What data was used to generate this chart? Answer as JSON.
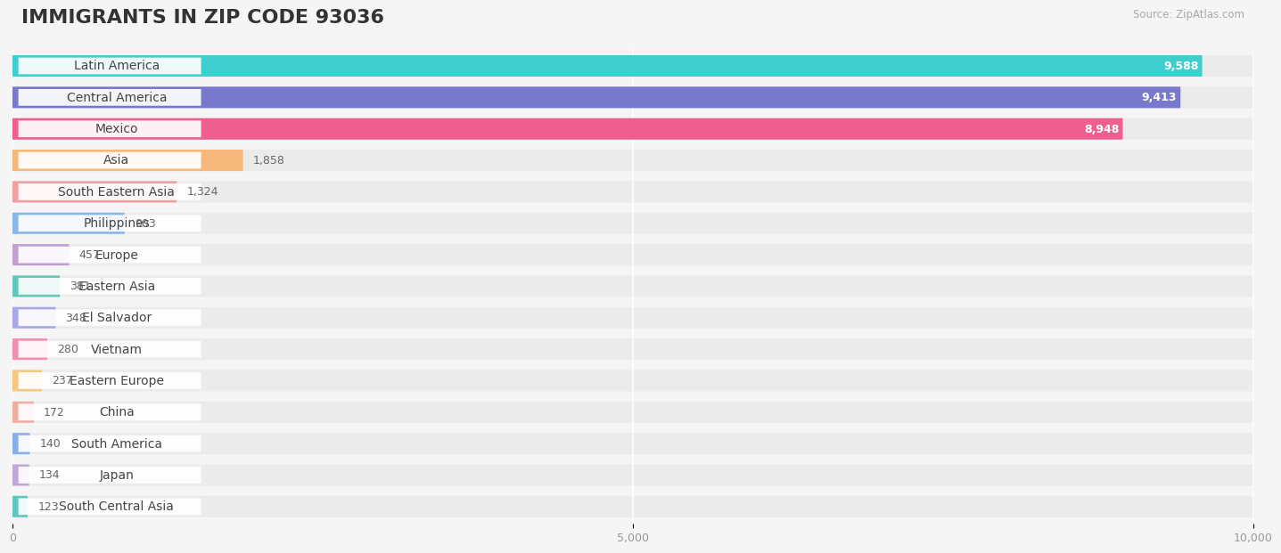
{
  "title": "IMMIGRANTS IN ZIP CODE 93036",
  "source_text": "Source: ZipAtlas.com",
  "categories": [
    "Latin America",
    "Central America",
    "Mexico",
    "Asia",
    "South Eastern Asia",
    "Philippines",
    "Europe",
    "Eastern Asia",
    "El Salvador",
    "Vietnam",
    "Eastern Europe",
    "China",
    "South America",
    "Japan",
    "South Central Asia"
  ],
  "values": [
    9588,
    9413,
    8948,
    1858,
    1324,
    903,
    457,
    381,
    348,
    280,
    237,
    172,
    140,
    134,
    123
  ],
  "bar_colors": [
    "#3ECECE",
    "#7878CC",
    "#EE5E8E",
    "#F5B87A",
    "#F0A0A0",
    "#88B8E8",
    "#C0A0D0",
    "#60C8B8",
    "#A8A8E8",
    "#F090B0",
    "#F5C880",
    "#F0B0A0",
    "#88B0E8",
    "#C0A8D8",
    "#60C8C0"
  ],
  "xmax": 10000,
  "xticks": [
    0,
    5000,
    10000
  ],
  "xtick_labels": [
    "0",
    "5,000",
    "10,000"
  ],
  "bg_color": "#f5f5f5",
  "bar_bg_color": "#e8e8e8",
  "row_bg_color": "#f0f0f0",
  "title_fontsize": 16,
  "label_fontsize": 10,
  "value_fontsize": 9,
  "n_large": 3
}
